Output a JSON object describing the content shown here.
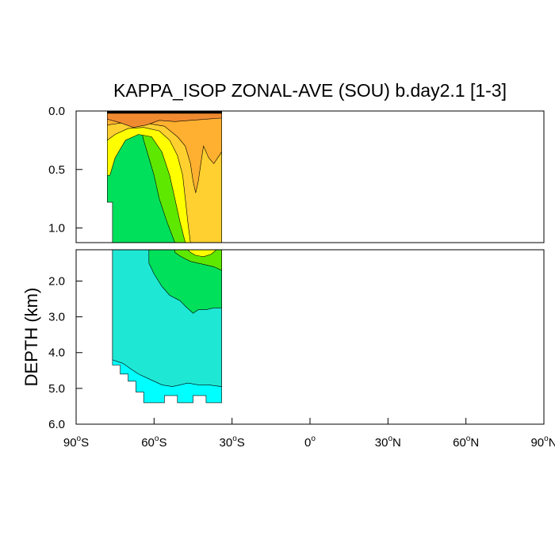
{
  "chart_data": {
    "type": "heatmap",
    "title": "KAPPA_ISOP ZONAL-AVE (SOU) b.day2.1 [1-3]",
    "ylabel": "DEPTH (km)",
    "xlabel": "",
    "x_range": [
      -90,
      90
    ],
    "x_ticks": [
      {
        "value": -90,
        "deg": "90",
        "hemi": "S"
      },
      {
        "value": -60,
        "deg": "60",
        "hemi": "S"
      },
      {
        "value": -30,
        "deg": "30",
        "hemi": "S"
      },
      {
        "value": 0,
        "deg": "0",
        "hemi": ""
      },
      {
        "value": 30,
        "deg": "30",
        "hemi": "N"
      },
      {
        "value": 60,
        "deg": "60",
        "hemi": "N"
      },
      {
        "value": 90,
        "deg": "90",
        "hemi": "N"
      }
    ],
    "upper_panel": {
      "y_range": [
        0.0,
        1.125
      ],
      "y_ticks": [
        {
          "value": 0.0,
          "label": "0.0"
        },
        {
          "value": 0.5,
          "label": "0.5"
        },
        {
          "value": 1.0,
          "label": "1.0"
        }
      ]
    },
    "lower_panel": {
      "y_range": [
        1.125,
        6.0
      ],
      "y_ticks": [
        {
          "value": 2.0,
          "label": "2.0"
        },
        {
          "value": 3.0,
          "label": "3.0"
        },
        {
          "value": 4.0,
          "label": "4.0"
        },
        {
          "value": 5.0,
          "label": "5.0"
        },
        {
          "value": 6.0,
          "label": "6.0"
        }
      ]
    },
    "data_extent": {
      "lat_min": -78,
      "lat_max": -34
    },
    "contour_fill_colors": [
      "#00ffff",
      "#1ee8d4",
      "#00e05a",
      "#5ee800",
      "#ffff00",
      "#ffd030",
      "#ffb030",
      "#f08a30",
      "#000000"
    ],
    "filled_regions": [
      {
        "panel": "lower",
        "color": "#00ffff",
        "points": [
          [
            -76,
            1.125
          ],
          [
            -34,
            1.125
          ],
          [
            -34,
            5.4
          ],
          [
            -40,
            5.4
          ],
          [
            -40,
            5.2
          ],
          [
            -45,
            5.2
          ],
          [
            -45,
            5.4
          ],
          [
            -51,
            5.4
          ],
          [
            -51,
            5.2
          ],
          [
            -56,
            5.2
          ],
          [
            -56,
            5.4
          ],
          [
            -64,
            5.4
          ],
          [
            -64,
            5.1
          ],
          [
            -67,
            5.1
          ],
          [
            -67,
            4.8
          ],
          [
            -70,
            4.8
          ],
          [
            -70,
            4.6
          ],
          [
            -73,
            4.6
          ],
          [
            -73,
            4.35
          ],
          [
            -76,
            4.35
          ]
        ]
      },
      {
        "panel": "lower",
        "color": "#1ee8d4",
        "points": [
          [
            -76,
            1.125
          ],
          [
            -34,
            1.125
          ],
          [
            -34,
            4.95
          ],
          [
            -39,
            4.9
          ],
          [
            -43,
            4.9
          ],
          [
            -47,
            4.85
          ],
          [
            -50,
            4.9
          ],
          [
            -53,
            4.95
          ],
          [
            -57,
            4.9
          ],
          [
            -60,
            4.8
          ],
          [
            -63,
            4.7
          ],
          [
            -66,
            4.6
          ],
          [
            -69,
            4.45
          ],
          [
            -72,
            4.3
          ],
          [
            -76,
            4.2
          ]
        ]
      },
      {
        "panel": "upper",
        "color": "#00e05a",
        "points": [
          [
            -78,
            0.0
          ],
          [
            -34,
            0.0
          ],
          [
            -34,
            1.125
          ],
          [
            -76,
            1.125
          ],
          [
            -76,
            0.78
          ],
          [
            -78,
            0.78
          ]
        ]
      },
      {
        "panel": "lower",
        "color": "#00e05a",
        "points": [
          [
            -62,
            1.125
          ],
          [
            -34,
            1.125
          ],
          [
            -34,
            2.75
          ],
          [
            -37,
            2.75
          ],
          [
            -40,
            2.8
          ],
          [
            -43,
            2.8
          ],
          [
            -45,
            2.9
          ],
          [
            -48,
            2.7
          ],
          [
            -50,
            2.55
          ],
          [
            -54,
            2.4
          ],
          [
            -57,
            2.15
          ],
          [
            -60,
            1.8
          ],
          [
            -62,
            1.5
          ]
        ]
      },
      {
        "panel": "lower",
        "color": "#5ee800",
        "points": [
          [
            -52,
            1.125
          ],
          [
            -34,
            1.125
          ],
          [
            -34,
            1.7
          ],
          [
            -37,
            1.6
          ],
          [
            -40,
            1.55
          ],
          [
            -43,
            1.5
          ],
          [
            -46,
            1.45
          ],
          [
            -48,
            1.38
          ],
          [
            -50,
            1.3
          ],
          [
            -52,
            1.2
          ]
        ]
      },
      {
        "panel": "upper",
        "color": "#5ee800",
        "points": [
          [
            -66,
            0.05
          ],
          [
            -34,
            0.05
          ],
          [
            -34,
            1.125
          ],
          [
            -52,
            1.125
          ],
          [
            -55,
            0.95
          ],
          [
            -58,
            0.75
          ],
          [
            -60,
            0.55
          ],
          [
            -62,
            0.4
          ],
          [
            -64,
            0.25
          ]
        ]
      },
      {
        "panel": "upper",
        "color": "#ffff00",
        "points": [
          [
            -78,
            0.0
          ],
          [
            -34,
            0.0
          ],
          [
            -34,
            1.125
          ],
          [
            -48,
            1.125
          ],
          [
            -50,
            0.95
          ],
          [
            -52,
            0.75
          ],
          [
            -54,
            0.55
          ],
          [
            -57,
            0.35
          ],
          [
            -61,
            0.22
          ],
          [
            -66,
            0.2
          ],
          [
            -71,
            0.25
          ],
          [
            -75,
            0.4
          ],
          [
            -77,
            0.55
          ],
          [
            -78,
            0.55
          ]
        ]
      },
      {
        "panel": "lower",
        "color": "#ffff00",
        "points": [
          [
            -47,
            1.125
          ],
          [
            -36,
            1.125
          ],
          [
            -38,
            1.25
          ],
          [
            -41,
            1.32
          ],
          [
            -44,
            1.28
          ],
          [
            -46,
            1.2
          ]
        ]
      },
      {
        "panel": "upper",
        "color": "#ffd030",
        "points": [
          [
            -78,
            0.0
          ],
          [
            -34,
            0.0
          ],
          [
            -34,
            1.125
          ],
          [
            -46,
            1.125
          ],
          [
            -47,
            0.95
          ],
          [
            -48,
            0.75
          ],
          [
            -49,
            0.55
          ],
          [
            -51,
            0.38
          ],
          [
            -54,
            0.25
          ],
          [
            -58,
            0.17
          ],
          [
            -64,
            0.14
          ],
          [
            -70,
            0.15
          ],
          [
            -75,
            0.2
          ],
          [
            -78,
            0.25
          ]
        ]
      },
      {
        "panel": "upper",
        "color": "#ffb030",
        "points": [
          [
            -78,
            0.0
          ],
          [
            -34,
            0.0
          ],
          [
            -34,
            0.35
          ],
          [
            -37,
            0.45
          ],
          [
            -39,
            0.4
          ],
          [
            -41,
            0.3
          ],
          [
            -42,
            0.45
          ],
          [
            -43,
            0.6
          ],
          [
            -44,
            0.7
          ],
          [
            -45,
            0.6
          ],
          [
            -46,
            0.45
          ],
          [
            -48,
            0.3
          ],
          [
            -51,
            0.22
          ],
          [
            -56,
            0.13
          ],
          [
            -64,
            0.1
          ],
          [
            -72,
            0.1
          ],
          [
            -78,
            0.12
          ]
        ]
      },
      {
        "panel": "upper",
        "color": "#f08a30",
        "points": [
          [
            -78,
            0.0
          ],
          [
            -34,
            0.0
          ],
          [
            -34,
            0.06
          ],
          [
            -40,
            0.07
          ],
          [
            -46,
            0.08
          ],
          [
            -52,
            0.09
          ],
          [
            -58,
            0.08
          ],
          [
            -63,
            0.12
          ],
          [
            -68,
            0.14
          ],
          [
            -73,
            0.1
          ],
          [
            -78,
            0.07
          ]
        ]
      },
      {
        "panel": "upper",
        "color": "#000000",
        "points": [
          [
            -78,
            0.0
          ],
          [
            -34,
            0.0
          ],
          [
            -34,
            0.02
          ],
          [
            -78,
            0.02
          ]
        ]
      }
    ]
  }
}
